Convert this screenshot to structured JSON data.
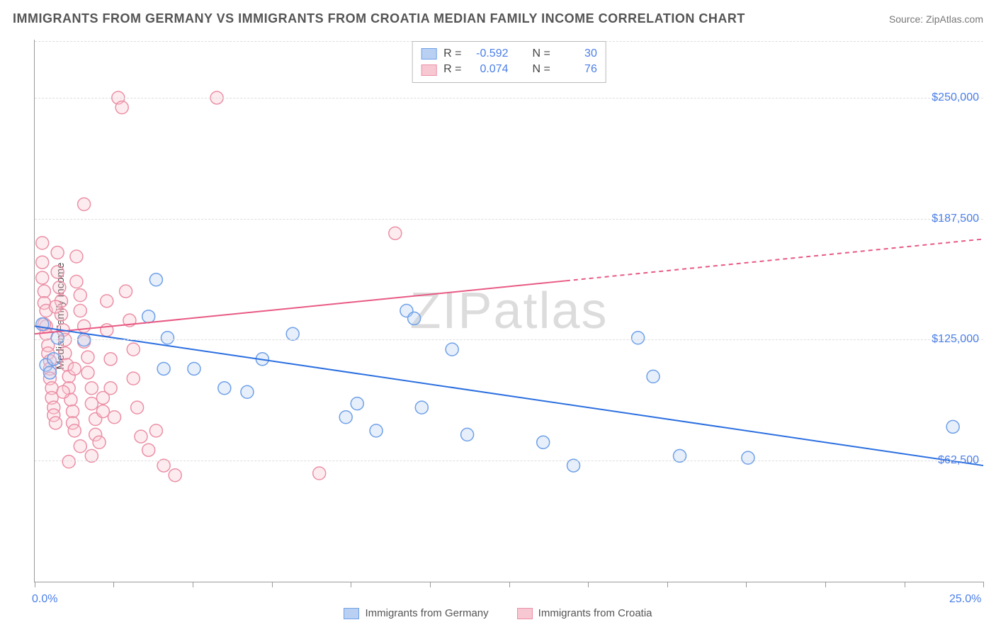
{
  "title": "IMMIGRANTS FROM GERMANY VS IMMIGRANTS FROM CROATIA MEDIAN FAMILY INCOME CORRELATION CHART",
  "source_prefix": "Source: ",
  "source_name": "ZipAtlas.com",
  "watermark": "ZIPatlas",
  "ylabel": "Median Family Income",
  "chart": {
    "type": "scatter",
    "xlim": [
      0,
      25
    ],
    "ylim": [
      0,
      280000
    ],
    "x_tick_positions": [
      0,
      2.08,
      4.17,
      6.25,
      8.33,
      10.42,
      12.5,
      14.58,
      16.67,
      18.75,
      20.83,
      22.92,
      25
    ],
    "x_tick_labels_shown": {
      "0": "0.0%",
      "25": "25.0%"
    },
    "y_gridlines": [
      62500,
      125000,
      187500,
      250000
    ],
    "y_tick_labels": [
      "$62,500",
      "$125,000",
      "$187,500",
      "$250,000"
    ],
    "background_color": "#ffffff",
    "grid_color": "#dddddd",
    "axis_color": "#999999",
    "tick_label_color": "#4a7ee8",
    "marker_radius": 9,
    "marker_stroke_width": 1.5,
    "marker_fill_opacity": 0.35,
    "line_width": 2,
    "series": [
      {
        "key": "germany",
        "label": "Immigrants from Germany",
        "color_fill": "#b9d0f3",
        "color_stroke": "#6ea0e8",
        "line_color": "#2b6fe0",
        "R": "-0.592",
        "N": "30",
        "trend": {
          "x1": 0,
          "y1": 132000,
          "x2": 25,
          "y2": 60000,
          "dash_after_x": null
        },
        "points": [
          [
            0.2,
            133000
          ],
          [
            0.3,
            112000
          ],
          [
            0.4,
            108000
          ],
          [
            0.5,
            115000
          ],
          [
            0.6,
            126000
          ],
          [
            1.3,
            125000
          ],
          [
            3.0,
            137000
          ],
          [
            3.2,
            156000
          ],
          [
            3.4,
            110000
          ],
          [
            3.5,
            126000
          ],
          [
            4.2,
            110000
          ],
          [
            5.0,
            100000
          ],
          [
            5.6,
            98000
          ],
          [
            6.0,
            115000
          ],
          [
            6.8,
            128000
          ],
          [
            8.2,
            85000
          ],
          [
            8.5,
            92000
          ],
          [
            9.0,
            78000
          ],
          [
            9.8,
            140000
          ],
          [
            10.0,
            136000
          ],
          [
            10.2,
            90000
          ],
          [
            11.0,
            120000
          ],
          [
            11.4,
            76000
          ],
          [
            13.4,
            72000
          ],
          [
            14.2,
            60000
          ],
          [
            15.9,
            126000
          ],
          [
            16.3,
            106000
          ],
          [
            17.0,
            65000
          ],
          [
            18.8,
            64000
          ],
          [
            24.2,
            80000
          ]
        ]
      },
      {
        "key": "croatia",
        "label": "Immigrants from Croatia",
        "color_fill": "#f8c8d2",
        "color_stroke": "#eb8fa6",
        "line_color": "#e85a84",
        "R": "0.074",
        "N": "76",
        "trend": {
          "x1": 0,
          "y1": 128000,
          "x2": 25,
          "y2": 177000,
          "dash_after_x": 14
        },
        "points": [
          [
            0.2,
            175000
          ],
          [
            0.2,
            165000
          ],
          [
            0.2,
            157000
          ],
          [
            0.25,
            150000
          ],
          [
            0.25,
            144000
          ],
          [
            0.3,
            140000
          ],
          [
            0.3,
            132000
          ],
          [
            0.3,
            128000
          ],
          [
            0.35,
            122000
          ],
          [
            0.35,
            118000
          ],
          [
            0.4,
            114000
          ],
          [
            0.4,
            110000
          ],
          [
            0.4,
            105000
          ],
          [
            0.45,
            100000
          ],
          [
            0.45,
            95000
          ],
          [
            0.5,
            90000
          ],
          [
            0.5,
            86000
          ],
          [
            0.55,
            82000
          ],
          [
            0.6,
            170000
          ],
          [
            0.6,
            160000
          ],
          [
            0.65,
            152000
          ],
          [
            0.7,
            145000
          ],
          [
            0.7,
            138000
          ],
          [
            0.75,
            130000
          ],
          [
            0.8,
            125000
          ],
          [
            0.8,
            118000
          ],
          [
            0.85,
            112000
          ],
          [
            0.9,
            106000
          ],
          [
            0.9,
            100000
          ],
          [
            0.95,
            94000
          ],
          [
            1.0,
            88000
          ],
          [
            1.0,
            82000
          ],
          [
            1.05,
            78000
          ],
          [
            1.1,
            168000
          ],
          [
            1.1,
            155000
          ],
          [
            1.2,
            148000
          ],
          [
            1.2,
            140000
          ],
          [
            1.3,
            132000
          ],
          [
            1.3,
            124000
          ],
          [
            1.4,
            116000
          ],
          [
            1.4,
            108000
          ],
          [
            1.5,
            100000
          ],
          [
            1.5,
            92000
          ],
          [
            1.6,
            84000
          ],
          [
            1.6,
            76000
          ],
          [
            1.7,
            72000
          ],
          [
            1.8,
            95000
          ],
          [
            1.8,
            88000
          ],
          [
            1.9,
            145000
          ],
          [
            1.9,
            130000
          ],
          [
            2.0,
            115000
          ],
          [
            2.0,
            100000
          ],
          [
            2.1,
            85000
          ],
          [
            2.2,
            250000
          ],
          [
            2.3,
            245000
          ],
          [
            2.4,
            150000
          ],
          [
            2.5,
            135000
          ],
          [
            2.6,
            120000
          ],
          [
            2.6,
            105000
          ],
          [
            2.7,
            90000
          ],
          [
            2.8,
            75000
          ],
          [
            3.0,
            68000
          ],
          [
            3.2,
            78000
          ],
          [
            3.4,
            60000
          ],
          [
            1.3,
            195000
          ],
          [
            0.9,
            62000
          ],
          [
            1.5,
            65000
          ],
          [
            1.2,
            70000
          ],
          [
            4.8,
            250000
          ],
          [
            3.7,
            55000
          ],
          [
            7.5,
            56000
          ],
          [
            9.5,
            180000
          ],
          [
            0.25,
            133000
          ],
          [
            0.55,
            142000
          ],
          [
            0.75,
            98000
          ],
          [
            1.05,
            110000
          ]
        ]
      }
    ]
  },
  "legend_bottom": [
    {
      "label": "Immigrants from Germany",
      "fill": "#b9d0f3",
      "stroke": "#6ea0e8"
    },
    {
      "label": "Immigrants from Croatia",
      "fill": "#f8c8d2",
      "stroke": "#eb8fa6"
    }
  ],
  "stats_box": {
    "labels": {
      "R": "R =",
      "N": "N ="
    }
  }
}
